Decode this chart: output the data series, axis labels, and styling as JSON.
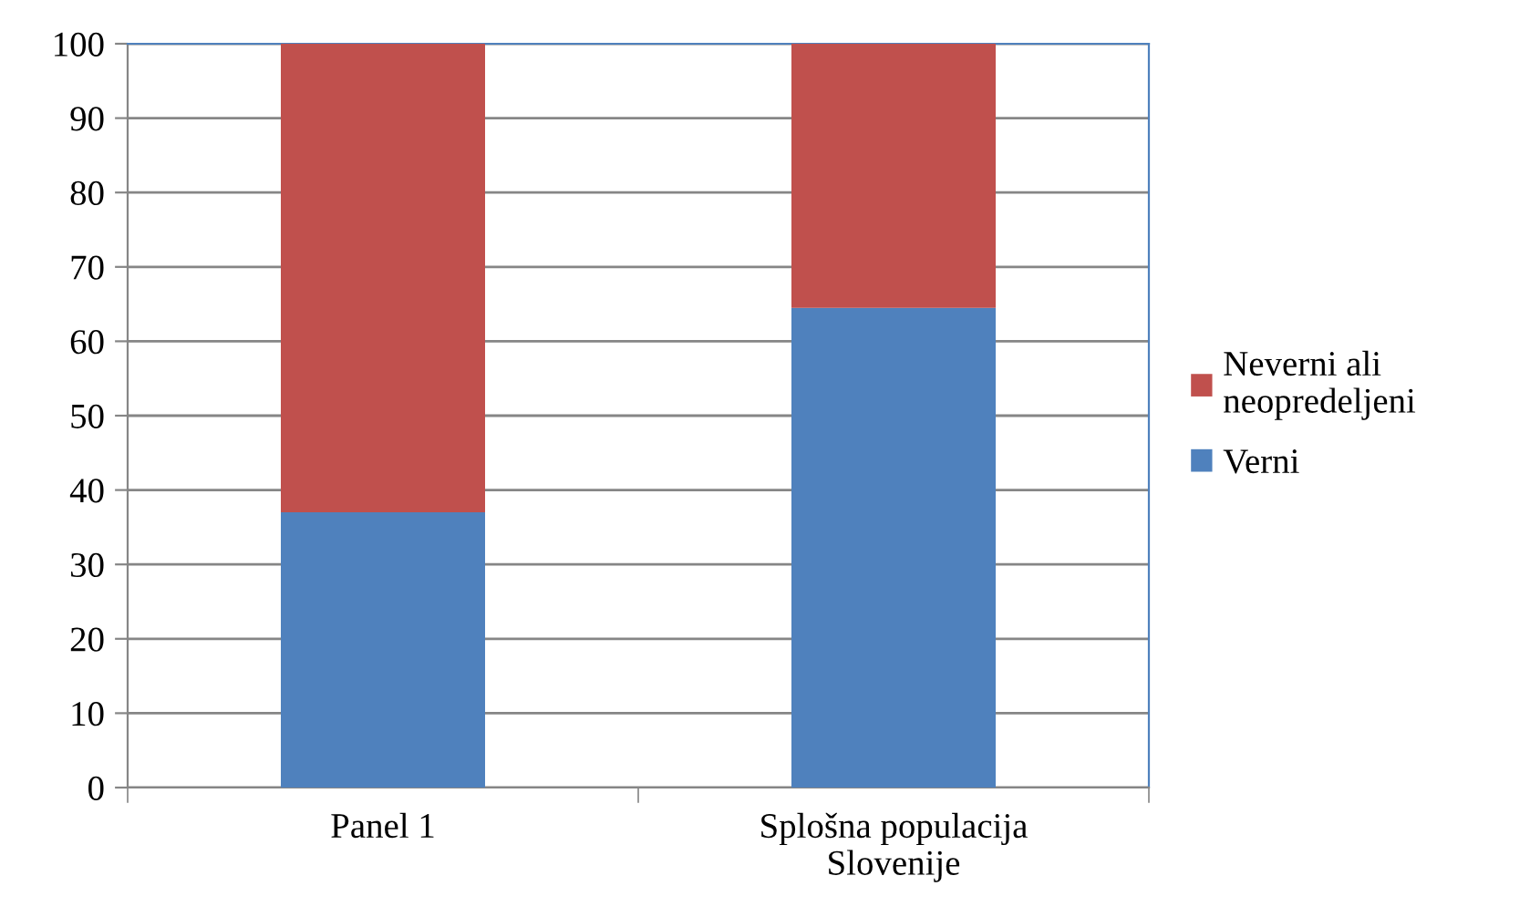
{
  "chart_data": {
    "type": "bar",
    "stacked": true,
    "categories": [
      "Panel 1",
      "Splošna populacija\nSlovenije"
    ],
    "series": [
      {
        "name": "Verni",
        "color": "#4f81bd",
        "values": [
          37,
          64.5
        ]
      },
      {
        "name": "Neverni ali\nneopredeljeni",
        "color": "#c0504d",
        "values": [
          63,
          35.5
        ]
      }
    ],
    "ylim": [
      0,
      100
    ],
    "yticks": [
      0,
      10,
      20,
      30,
      40,
      50,
      60,
      70,
      80,
      90,
      100
    ],
    "grid": "y",
    "legend": "right"
  }
}
